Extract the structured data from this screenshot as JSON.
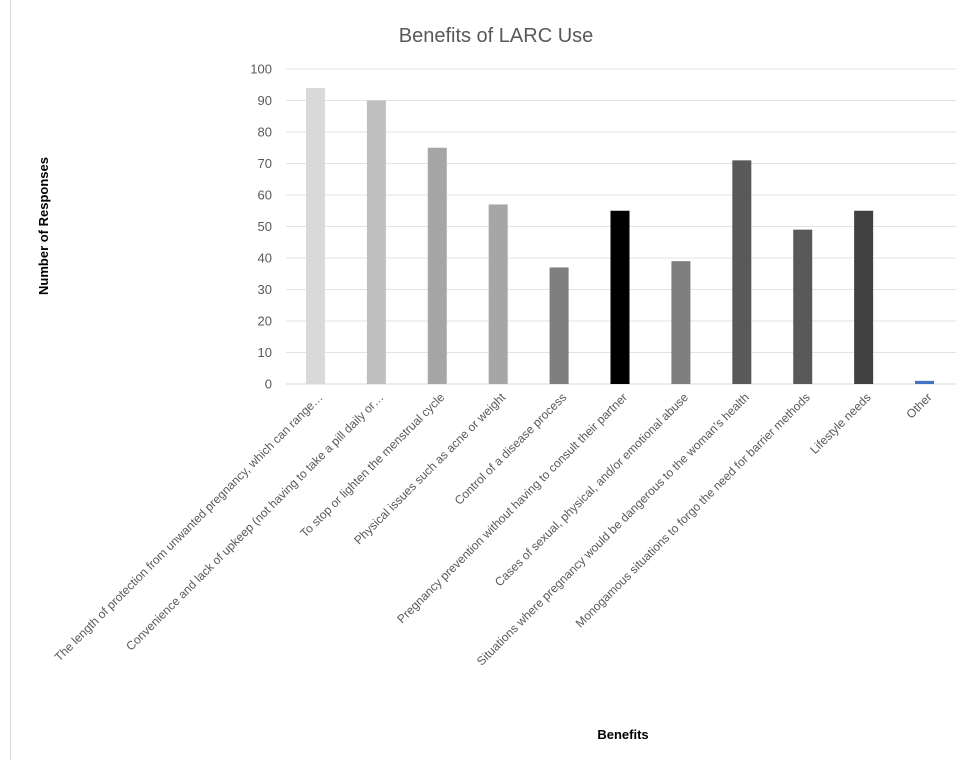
{
  "chart_data": {
    "type": "bar",
    "title": "Benefits of LARC Use",
    "xlabel": "Benefits",
    "ylabel": "Number of Responses",
    "ylim": [
      0,
      100
    ],
    "yticks": [
      0,
      10,
      20,
      30,
      40,
      50,
      60,
      70,
      80,
      90,
      100
    ],
    "grid": true,
    "legend": "none",
    "categories": [
      "The length of protection from unwanted pregnancy, which can range…",
      "Convenience and lack of upkeep (not having to take a pill daily or…",
      "To stop or lighten the menstrual cycle",
      "Physical issues such as acne or weight",
      "Control of a disease process",
      "Pregnancy prevention without having to consult their partner",
      "Cases of sexual, physical, and/or emotional abuse",
      "Situations where pregnancy would be dangerous to the woman’s health",
      "Monogamous situations to forgo the need for barrier methods",
      "Lifestyle needs",
      "Other"
    ],
    "values": [
      94,
      90,
      75,
      57,
      37,
      55,
      39,
      71,
      49,
      55,
      1
    ],
    "colors": [
      "#d9d9d9",
      "#bfbfbf",
      "#a6a6a6",
      "#a6a6a6",
      "#7f7f7f",
      "#000000",
      "#7f7f7f",
      "#595959",
      "#595959",
      "#404040",
      "#4472c4"
    ]
  }
}
